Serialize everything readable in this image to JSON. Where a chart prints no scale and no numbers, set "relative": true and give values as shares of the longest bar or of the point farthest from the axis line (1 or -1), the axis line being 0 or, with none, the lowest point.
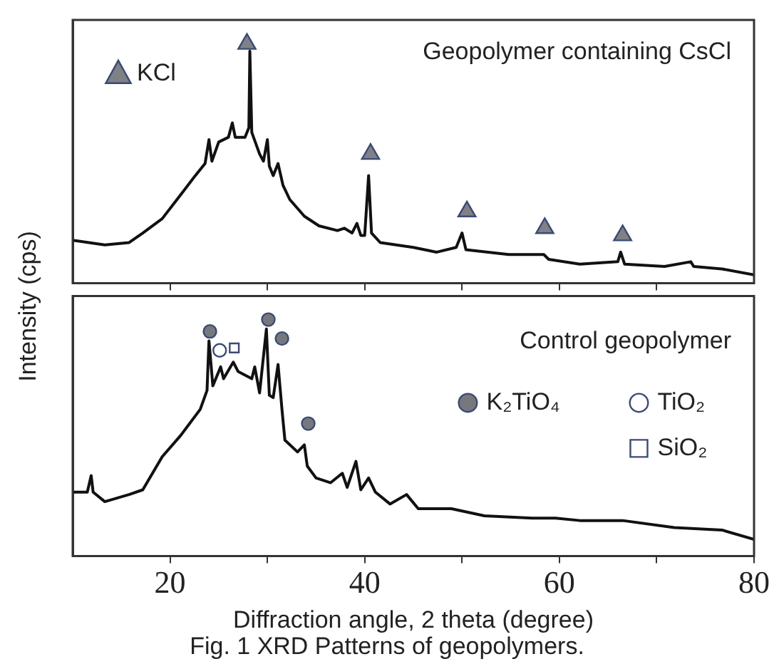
{
  "chart_data": [
    {
      "type": "line",
      "ylabel": "Intensity (cps)",
      "annotations": [
        "Geopolymer containing CsCl"
      ],
      "relative": true,
      "xlim": [
        10,
        80
      ],
      "xticks": [
        20,
        30,
        40,
        50,
        60,
        70
      ],
      "tick_labels": false,
      "grid": false,
      "legend": "top left",
      "series": [
        {
          "type": "line",
          "color": "#111111",
          "marker": "none",
          "x": [
            10,
            13.3,
            15.8,
            17.2,
            19.2,
            21.1,
            22.6,
            23.6,
            24.0,
            24.3,
            25.0,
            26.0,
            26.4,
            26.7,
            27.7,
            28.1,
            28.2,
            28.4,
            29.2,
            29.6,
            30.0,
            30.2,
            30.6,
            31.1,
            31.6,
            32.3,
            33.8,
            35.3,
            37.2,
            37.9,
            38.7,
            39.2,
            39.6,
            40.0,
            40.4,
            40.7,
            41.6,
            45,
            47.4,
            49.4,
            50.0,
            50.4,
            54.8,
            58.4,
            58.9,
            62.1,
            66.0,
            66.3,
            66.7,
            70.8,
            73.5,
            73.8,
            76.7,
            80
          ],
          "values": [
            0.18,
            0.16,
            0.17,
            0.21,
            0.27,
            0.37,
            0.45,
            0.5,
            0.6,
            0.51,
            0.59,
            0.61,
            0.67,
            0.61,
            0.61,
            0.65,
            0.97,
            0.63,
            0.54,
            0.51,
            0.6,
            0.49,
            0.45,
            0.5,
            0.41,
            0.35,
            0.28,
            0.24,
            0.22,
            0.23,
            0.21,
            0.25,
            0.2,
            0.2,
            0.45,
            0.21,
            0.17,
            0.15,
            0.13,
            0.15,
            0.21,
            0.14,
            0.12,
            0.12,
            0.1,
            0.08,
            0.09,
            0.13,
            0.08,
            0.07,
            0.09,
            0.07,
            0.06,
            0.035
          ]
        },
        {
          "type": "scatter",
          "name": "KCl",
          "marker": "triangle",
          "color": "#7f8185",
          "x": [
            27.9,
            40.6,
            50.5,
            58.5,
            66.5
          ],
          "values": [
            1.0,
            0.54,
            0.3,
            0.23,
            0.2
          ]
        }
      ]
    },
    {
      "type": "line",
      "xlabel": "Diffraction angle, 2 theta (degree)",
      "annotations": [
        "Control geopolymer",
        "Fig. 1 XRD Patterns of geopolymers."
      ],
      "relative": true,
      "xlim": [
        10,
        80
      ],
      "xticks": [
        20,
        {
          "value": 30,
          "label": null
        },
        40,
        {
          "value": 50,
          "label": null
        },
        60,
        {
          "value": 70,
          "label": null
        },
        80
      ],
      "tick_labels": "x",
      "grid": false,
      "legend": "right",
      "series": [
        {
          "type": "line",
          "color": "#111111",
          "marker": "none",
          "x": [
            10,
            11.5,
            11.9,
            12.1,
            13.3,
            15.8,
            17.2,
            19.2,
            21.1,
            23.1,
            23.8,
            24.0,
            24.4,
            25.2,
            25.5,
            26.5,
            27.0,
            28.4,
            28.7,
            29.2,
            29.9,
            30.2,
            30.6,
            31.1,
            31.5,
            31.8,
            33.1,
            33.8,
            34.1,
            35.0,
            36.5,
            37.7,
            38.2,
            39.1,
            39.6,
            40.4,
            41.1,
            42.6,
            44.3,
            45.5,
            48.9,
            52.3,
            57.2,
            59.6,
            62.1,
            66.5,
            71.8,
            76.7,
            80
          ],
          "values": [
            0.27,
            0.27,
            0.34,
            0.27,
            0.23,
            0.26,
            0.28,
            0.42,
            0.51,
            0.62,
            0.7,
            0.91,
            0.72,
            0.8,
            0.75,
            0.82,
            0.78,
            0.75,
            0.8,
            0.69,
            0.96,
            0.68,
            0.67,
            0.81,
            0.62,
            0.49,
            0.44,
            0.47,
            0.38,
            0.33,
            0.31,
            0.35,
            0.29,
            0.4,
            0.28,
            0.33,
            0.27,
            0.22,
            0.26,
            0.2,
            0.2,
            0.17,
            0.16,
            0.16,
            0.15,
            0.15,
            0.12,
            0.11,
            0.07
          ]
        },
        {
          "type": "scatter",
          "name": "K₂TiO₄",
          "marker": "circle",
          "color": "#77787b",
          "x": [
            24.1,
            30.1,
            31.5,
            34.2
          ],
          "values": [
            0.95,
            1.0,
            0.92,
            0.56
          ]
        },
        {
          "type": "scatter",
          "name": "TiO₂",
          "marker": "circle",
          "color": "#ffffff",
          "x": [
            25.1
          ],
          "values": [
            0.87
          ]
        },
        {
          "type": "scatter",
          "name": "SiO₂",
          "marker": "square",
          "color": "#ffffff",
          "x": [
            26.6
          ],
          "values": [
            0.88
          ]
        }
      ]
    }
  ]
}
